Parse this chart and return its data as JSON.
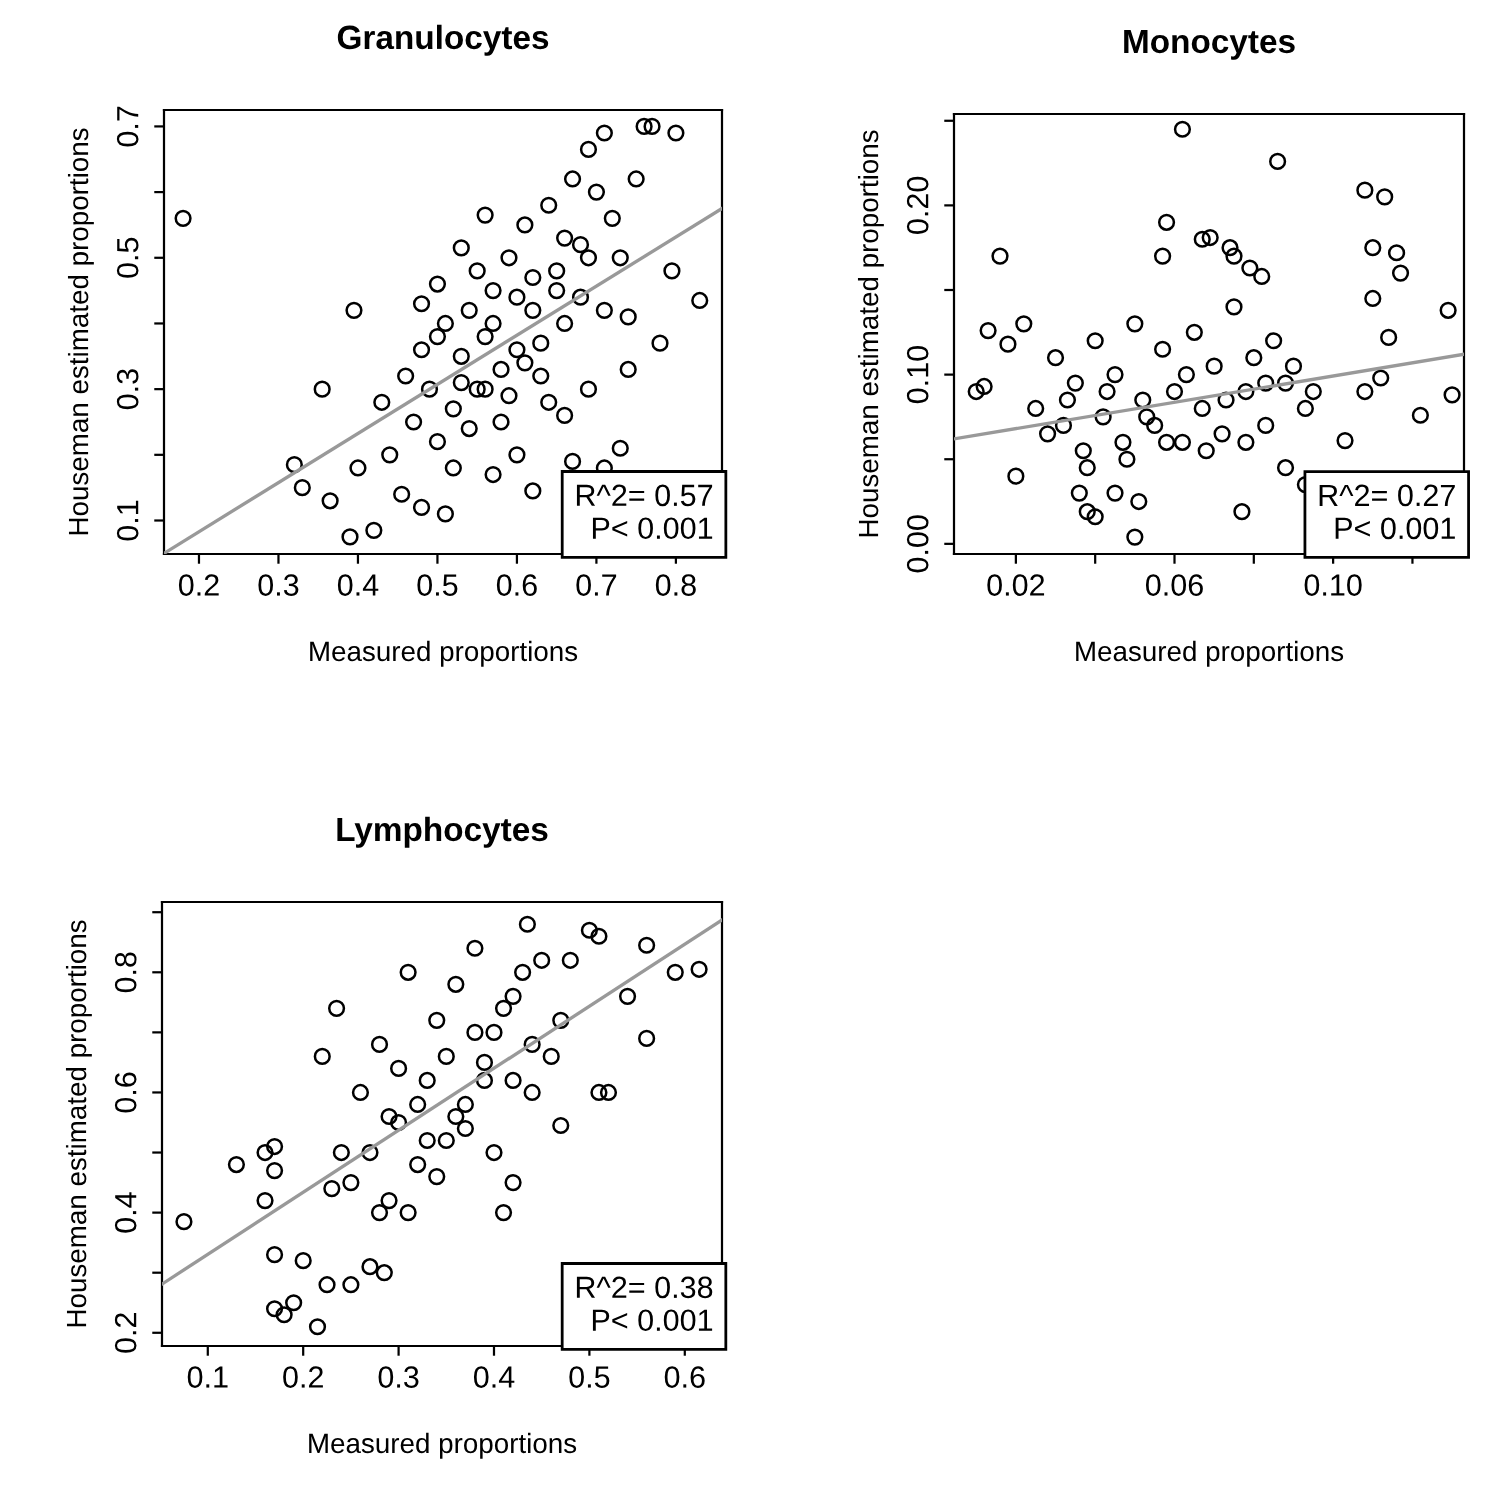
{
  "chart_data": [
    {
      "type": "scatter",
      "title": "Granulocytes",
      "xlabel": "Measured proportions",
      "ylabel": "Houseman estimated proportions",
      "xlim": [
        0.156,
        0.858
      ],
      "ylim": [
        0.049,
        0.725
      ],
      "xticks": [
        0.2,
        0.3,
        0.4,
        0.5,
        0.6,
        0.7,
        0.8
      ],
      "yticks": [
        0.1,
        {
          "value": 0.2,
          "label": null
        },
        0.3,
        {
          "value": 0.4,
          "label": null
        },
        0.5,
        {
          "value": 0.6,
          "label": null
        },
        0.7
      ],
      "grid": false,
      "legend": false,
      "annotations": [
        "R^2= 0.57",
        "P< 0.001"
      ],
      "series": [
        {
          "marker": "circle",
          "color": "#000000",
          "x": [
            0.18,
            0.32,
            0.33,
            0.355,
            0.365,
            0.39,
            0.395,
            0.42,
            0.4,
            0.83,
            0.8,
            0.77,
            0.76,
            0.71,
            0.69,
            0.78,
            0.795,
            0.74,
            0.74,
            0.73,
            0.71,
            0.67,
            0.62,
            0.57,
            0.51,
            0.48,
            0.455,
            0.56,
            0.53,
            0.5,
            0.43,
            0.44,
            0.46,
            0.47,
            0.48,
            0.49,
            0.5,
            0.51,
            0.52,
            0.53,
            0.54,
            0.55,
            0.56,
            0.57,
            0.58,
            0.59,
            0.6,
            0.61,
            0.62,
            0.63,
            0.64,
            0.65,
            0.66,
            0.67,
            0.68,
            0.69,
            0.7,
            0.72,
            0.75,
            0.52,
            0.55,
            0.58,
            0.6,
            0.62,
            0.64,
            0.66,
            0.68,
            0.5,
            0.54,
            0.57,
            0.6,
            0.63,
            0.66,
            0.69,
            0.71,
            0.73,
            0.56,
            0.59,
            0.61,
            0.65,
            0.48,
            0.53
          ],
          "values": [
            0.56,
            0.185,
            0.15,
            0.3,
            0.13,
            0.075,
            0.42,
            0.085,
            0.18,
            0.435,
            0.69,
            0.7,
            0.7,
            0.69,
            0.665,
            0.37,
            0.48,
            0.41,
            0.33,
            0.21,
            0.18,
            0.19,
            0.145,
            0.17,
            0.11,
            0.12,
            0.14,
            0.565,
            0.515,
            0.46,
            0.28,
            0.2,
            0.32,
            0.25,
            0.36,
            0.3,
            0.22,
            0.4,
            0.27,
            0.35,
            0.42,
            0.3,
            0.38,
            0.45,
            0.25,
            0.5,
            0.36,
            0.55,
            0.42,
            0.32,
            0.58,
            0.48,
            0.4,
            0.62,
            0.52,
            0.3,
            0.6,
            0.56,
            0.62,
            0.18,
            0.48,
            0.33,
            0.2,
            0.47,
            0.28,
            0.53,
            0.44,
            0.38,
            0.24,
            0.4,
            0.44,
            0.37,
            0.26,
            0.5,
            0.42,
            0.5,
            0.3,
            0.29,
            0.34,
            0.45,
            0.43,
            0.31
          ]
        },
        {
          "type": "line",
          "color": "#999999",
          "x": [
            0.156,
            0.858
          ],
          "values": [
            0.05,
            0.575
          ]
        }
      ]
    },
    {
      "type": "scatter",
      "title": "Monocytes",
      "xlabel": "Measured proportions",
      "ylabel": "Houseman estimated proportions",
      "xlim": [
        0.0044,
        0.133
      ],
      "ylim": [
        -0.006,
        0.254
      ],
      "xticks": [
        0.02,
        {
          "value": 0.04,
          "label": null
        },
        0.06,
        {
          "value": 0.08,
          "label": null
        },
        {
          "value": 0.1,
          "label": "0.10"
        },
        {
          "value": 0.12,
          "label": null
        }
      ],
      "yticks": [
        {
          "value": 0.0,
          "label": "0.00"
        },
        {
          "value": 0.05,
          "label": null
        },
        {
          "value": 0.1,
          "label": "0.10"
        },
        {
          "value": 0.15,
          "label": null
        },
        {
          "value": 0.2,
          "label": "0.20"
        },
        {
          "value": 0.25,
          "label": null
        }
      ],
      "grid": false,
      "legend": false,
      "annotations": [
        "R^2= 0.27",
        "P< 0.001"
      ],
      "series": [
        {
          "marker": "circle",
          "color": "#000000",
          "x": [
            0.062,
            0.086,
            0.108,
            0.113,
            0.016,
            0.058,
            0.057,
            0.067,
            0.069,
            0.074,
            0.075,
            0.079,
            0.082,
            0.11,
            0.116,
            0.117,
            0.11,
            0.129,
            0.13,
            0.112,
            0.114,
            0.108,
            0.122,
            0.103,
            0.05,
            0.077,
            0.038,
            0.04,
            0.012,
            0.01,
            0.013,
            0.018,
            0.022,
            0.02,
            0.036,
            0.045,
            0.051,
            0.093,
            0.088,
            0.025,
            0.028,
            0.03,
            0.032,
            0.035,
            0.037,
            0.04,
            0.042,
            0.045,
            0.047,
            0.05,
            0.052,
            0.055,
            0.057,
            0.06,
            0.062,
            0.065,
            0.067,
            0.07,
            0.072,
            0.075,
            0.078,
            0.08,
            0.083,
            0.085,
            0.088,
            0.09,
            0.093,
            0.095,
            0.033,
            0.043,
            0.053,
            0.063,
            0.073,
            0.083,
            0.048,
            0.058,
            0.068,
            0.078,
            0.038
          ],
          "values": [
            0.245,
            0.226,
            0.209,
            0.205,
            0.17,
            0.19,
            0.17,
            0.18,
            0.181,
            0.175,
            0.17,
            0.163,
            0.158,
            0.175,
            0.172,
            0.16,
            0.145,
            0.138,
            0.088,
            0.098,
            0.122,
            0.09,
            0.076,
            0.061,
            0.004,
            0.019,
            0.019,
            0.016,
            0.093,
            0.09,
            0.126,
            0.118,
            0.13,
            0.04,
            0.03,
            0.03,
            0.025,
            0.035,
            0.045,
            0.08,
            0.065,
            0.11,
            0.07,
            0.095,
            0.055,
            0.12,
            0.075,
            0.1,
            0.06,
            0.13,
            0.085,
            0.07,
            0.115,
            0.09,
            0.06,
            0.125,
            0.08,
            0.105,
            0.065,
            0.14,
            0.09,
            0.11,
            0.07,
            0.12,
            0.095,
            0.105,
            0.08,
            0.09,
            0.085,
            0.09,
            0.075,
            0.1,
            0.085,
            0.095,
            0.05,
            0.06,
            0.055,
            0.06,
            0.045
          ]
        },
        {
          "type": "line",
          "color": "#999999",
          "x": [
            0.0044,
            0.133
          ],
          "values": [
            0.062,
            0.112
          ]
        }
      ]
    },
    {
      "type": "scatter",
      "title": "Lymphocytes",
      "xlabel": "Measured proportions",
      "ylabel": "Houseman estimated proportions",
      "xlim": [
        0.052,
        0.639
      ],
      "ylim": [
        0.178,
        0.917
      ],
      "xticks": [
        0.1,
        0.2,
        0.3,
        0.4,
        0.5,
        0.6
      ],
      "yticks": [
        0.2,
        {
          "value": 0.3,
          "label": null
        },
        0.4,
        {
          "value": 0.5,
          "label": null
        },
        0.6,
        {
          "value": 0.7,
          "label": null
        },
        0.8,
        {
          "value": 0.9,
          "label": null
        }
      ],
      "grid": false,
      "legend": false,
      "annotations": [
        "R^2= 0.38",
        "P< 0.001"
      ],
      "series": [
        {
          "marker": "circle",
          "color": "#000000",
          "x": [
            0.075,
            0.13,
            0.16,
            0.17,
            0.17,
            0.16,
            0.17,
            0.17,
            0.18,
            0.19,
            0.215,
            0.2,
            0.225,
            0.25,
            0.27,
            0.285,
            0.22,
            0.235,
            0.435,
            0.5,
            0.51,
            0.56,
            0.59,
            0.615,
            0.56,
            0.51,
            0.52,
            0.47,
            0.42,
            0.41,
            0.54,
            0.28,
            0.25,
            0.26,
            0.27,
            0.28,
            0.29,
            0.3,
            0.31,
            0.32,
            0.33,
            0.34,
            0.35,
            0.36,
            0.37,
            0.38,
            0.39,
            0.4,
            0.41,
            0.42,
            0.43,
            0.44,
            0.45,
            0.46,
            0.47,
            0.48,
            0.3,
            0.32,
            0.34,
            0.36,
            0.38,
            0.4,
            0.42,
            0.44,
            0.35,
            0.37,
            0.39,
            0.31,
            0.33,
            0.29,
            0.24,
            0.23
          ],
          "values": [
            0.385,
            0.48,
            0.5,
            0.51,
            0.47,
            0.42,
            0.33,
            0.24,
            0.23,
            0.25,
            0.21,
            0.32,
            0.28,
            0.28,
            0.31,
            0.3,
            0.66,
            0.74,
            0.88,
            0.87,
            0.86,
            0.845,
            0.8,
            0.805,
            0.69,
            0.6,
            0.6,
            0.545,
            0.45,
            0.4,
            0.76,
            0.4,
            0.45,
            0.6,
            0.5,
            0.68,
            0.42,
            0.55,
            0.8,
            0.48,
            0.62,
            0.72,
            0.52,
            0.78,
            0.58,
            0.84,
            0.65,
            0.7,
            0.74,
            0.62,
            0.8,
            0.68,
            0.82,
            0.66,
            0.72,
            0.82,
            0.64,
            0.58,
            0.46,
            0.56,
            0.7,
            0.5,
            0.76,
            0.6,
            0.66,
            0.54,
            0.62,
            0.4,
            0.52,
            0.56,
            0.5,
            0.44
          ]
        },
        {
          "type": "line",
          "color": "#999999",
          "x": [
            0.052,
            0.639
          ],
          "values": [
            0.281,
            0.887
          ]
        }
      ]
    }
  ]
}
